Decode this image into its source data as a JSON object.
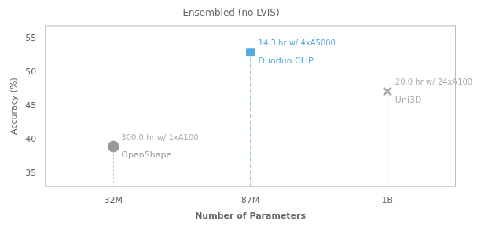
{
  "chart_data": {
    "type": "scatter",
    "title": "Ensembled (no LVIS)",
    "xlabel": "Number of Parameters",
    "ylabel": "Accuracy (%)",
    "categories": [
      "32M",
      "87M",
      "1B"
    ],
    "ylim": [
      33,
      57
    ],
    "yticks": [
      35,
      40,
      45,
      50,
      55
    ],
    "grid": false,
    "series": [
      {
        "name": "OpenShape",
        "color": "#999999",
        "marker": "circle",
        "line_style": "dotted",
        "values": [
          39.0,
          null,
          null
        ]
      },
      {
        "name": "Duoduo CLIP",
        "color": "#55aadd",
        "marker": "square",
        "line_style": "dashed",
        "values": [
          null,
          53.0,
          null
        ]
      },
      {
        "name": "Uni3D",
        "color": "#aaaaaa",
        "marker": "x",
        "line_style": "dotted",
        "values": [
          null,
          null,
          47.2
        ]
      }
    ],
    "annotations": [
      {
        "text": "300.0 hr w/ 1xA100",
        "x": "32M",
        "y": 39.0,
        "color": "#aaaaaa"
      },
      {
        "text": "14.3 hr w/ 4xA5000",
        "x": "87M",
        "y": 53.0,
        "color": "#55aadd"
      },
      {
        "text": "20.0 hr w/ 24xA100",
        "x": "1B",
        "y": 47.2,
        "color": "#aaaaaa"
      }
    ]
  }
}
